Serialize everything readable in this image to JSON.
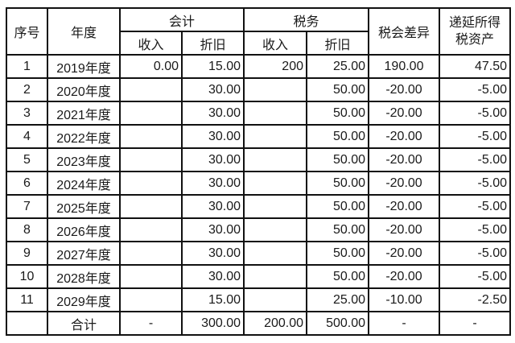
{
  "headers": {
    "seq": "序号",
    "year": "年度",
    "accounting": "会计",
    "tax": "税务",
    "income": "收入",
    "depreciation": "折旧",
    "difference": "税会差异",
    "deferred_tax_asset_line1": "递延所得",
    "deferred_tax_asset_line2": "税资产"
  },
  "rows": [
    {
      "seq": "1",
      "year": "2019年度",
      "acc_income": "0.00",
      "acc_dep": "15.00",
      "tax_income": "200",
      "tax_dep": "25.00",
      "diff": "190.00",
      "dta": "47.50"
    },
    {
      "seq": "2",
      "year": "2020年度",
      "acc_income": "",
      "acc_dep": "30.00",
      "tax_income": "",
      "tax_dep": "50.00",
      "diff": "-20.00",
      "dta": "-5.00"
    },
    {
      "seq": "3",
      "year": "2021年度",
      "acc_income": "",
      "acc_dep": "30.00",
      "tax_income": "",
      "tax_dep": "50.00",
      "diff": "-20.00",
      "dta": "-5.00"
    },
    {
      "seq": "4",
      "year": "2022年度",
      "acc_income": "",
      "acc_dep": "30.00",
      "tax_income": "",
      "tax_dep": "50.00",
      "diff": "-20.00",
      "dta": "-5.00"
    },
    {
      "seq": "5",
      "year": "2023年度",
      "acc_income": "",
      "acc_dep": "30.00",
      "tax_income": "",
      "tax_dep": "50.00",
      "diff": "-20.00",
      "dta": "-5.00"
    },
    {
      "seq": "6",
      "year": "2024年度",
      "acc_income": "",
      "acc_dep": "30.00",
      "tax_income": "",
      "tax_dep": "50.00",
      "diff": "-20.00",
      "dta": "-5.00"
    },
    {
      "seq": "7",
      "year": "2025年度",
      "acc_income": "",
      "acc_dep": "30.00",
      "tax_income": "",
      "tax_dep": "50.00",
      "diff": "-20.00",
      "dta": "-5.00"
    },
    {
      "seq": "8",
      "year": "2026年度",
      "acc_income": "",
      "acc_dep": "30.00",
      "tax_income": "",
      "tax_dep": "50.00",
      "diff": "-20.00",
      "dta": "-5.00"
    },
    {
      "seq": "9",
      "year": "2027年度",
      "acc_income": "",
      "acc_dep": "30.00",
      "tax_income": "",
      "tax_dep": "50.00",
      "diff": "-20.00",
      "dta": "-5.00"
    },
    {
      "seq": "10",
      "year": "2028年度",
      "acc_income": "",
      "acc_dep": "30.00",
      "tax_income": "",
      "tax_dep": "50.00",
      "diff": "-20.00",
      "dta": "-5.00"
    },
    {
      "seq": "11",
      "year": "2029年度",
      "acc_income": "",
      "acc_dep": "15.00",
      "tax_income": "",
      "tax_dep": "25.00",
      "diff": "-10.00",
      "dta": "-2.50"
    }
  ],
  "total": {
    "label": "合计",
    "acc_income": "-",
    "acc_dep": "300.00",
    "tax_income": "200.00",
    "tax_dep": "500.00",
    "diff": "-",
    "dta": "-"
  }
}
